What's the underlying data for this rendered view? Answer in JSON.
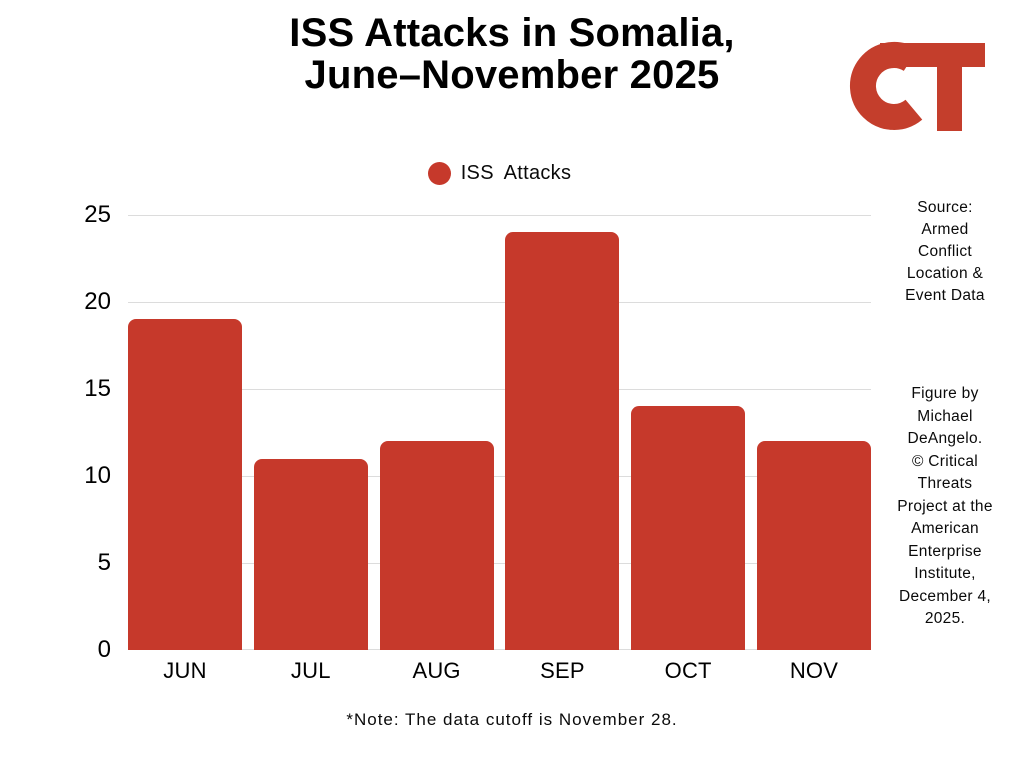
{
  "title": "ISS Attacks in Somalia,\nJune–November 2025",
  "logo": {
    "name": "Critical Threats CT monogram",
    "color": "#c43e2c"
  },
  "legend": {
    "label": "ISS Attacks",
    "marker_color": "#c6392b"
  },
  "chart_data": {
    "type": "bar",
    "title": "ISS Attacks in Somalia, June–November 2025",
    "categories": [
      "JUN",
      "JUL",
      "AUG",
      "SEP",
      "OCT",
      "NOV"
    ],
    "series": [
      {
        "name": "ISS Attacks",
        "values": [
          19,
          11,
          12,
          24,
          14,
          12
        ]
      }
    ],
    "xlabel": "",
    "ylabel": "",
    "ylim": [
      0,
      25
    ],
    "yticks": [
      0,
      5,
      10,
      15,
      20,
      25
    ],
    "bar_color": "#c6392b",
    "gridline_color": "#dcdcdc",
    "grid": true,
    "legend_position": "top-center"
  },
  "sidebar": {
    "source": "Source:\nArmed\nConflict\nLocation &\nEvent Data",
    "credit": "Figure by\nMichael\nDeAngelo.\n© Critical\nThreats\nProject at the\nAmerican\nEnterprise\nInstitute,\nDecember 4,\n2025."
  },
  "note": "*Note: The data cutoff is November 28."
}
